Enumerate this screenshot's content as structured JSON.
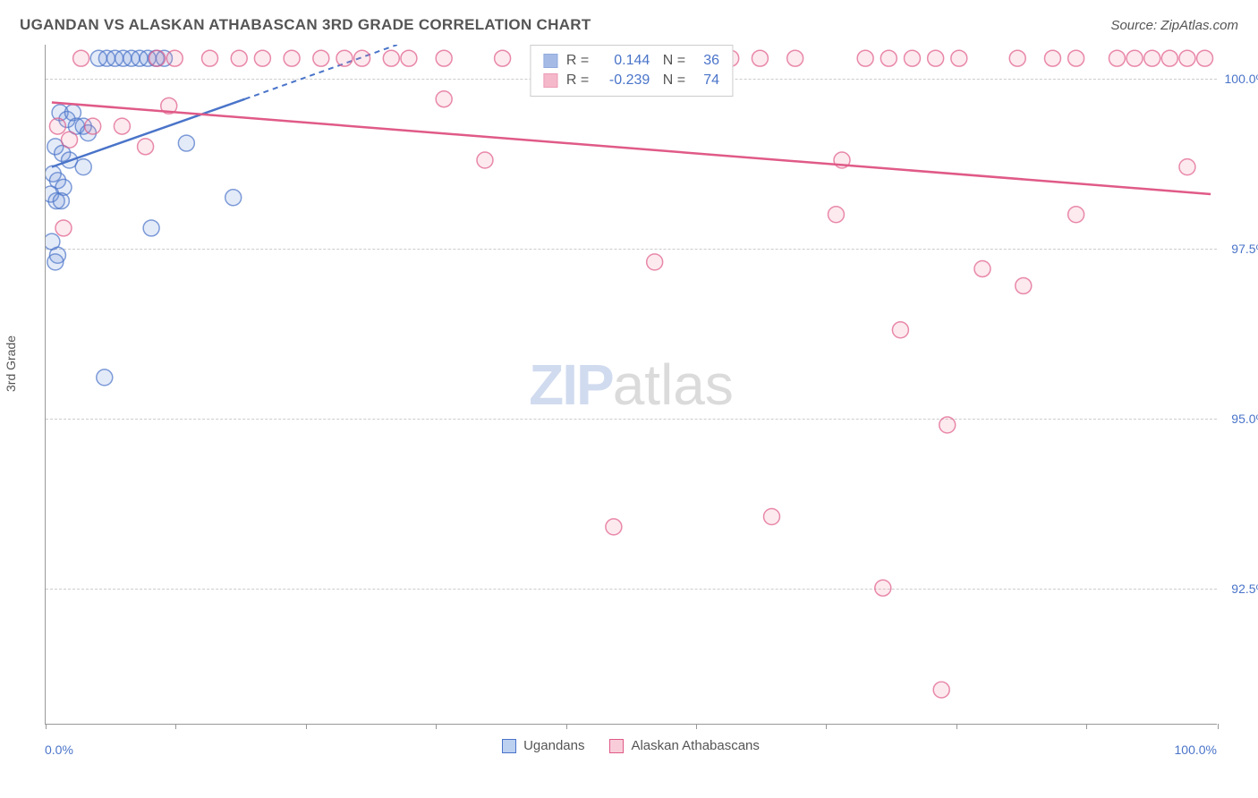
{
  "header": {
    "title": "UGANDAN VS ALASKAN ATHABASCAN 3RD GRADE CORRELATION CHART",
    "source": "Source: ZipAtlas.com"
  },
  "chart": {
    "type": "scatter",
    "y_axis_title": "3rd Grade",
    "xlim": [
      0,
      100
    ],
    "ylim": [
      90.5,
      100.5
    ],
    "x_ticks": [
      0,
      11.1,
      22.2,
      33.3,
      44.4,
      55.5,
      66.6,
      77.7,
      88.8,
      100
    ],
    "x_tick_labels_shown": {
      "left": "0.0%",
      "right": "100.0%"
    },
    "y_gridlines": [
      92.5,
      95.0,
      97.5,
      100.0
    ],
    "y_tick_labels": [
      "92.5%",
      "95.0%",
      "97.5%",
      "100.0%"
    ],
    "background_color": "#ffffff",
    "grid_color": "#cccccc",
    "axis_color": "#999999",
    "tick_label_color": "#4a74c9",
    "marker_radius": 9,
    "marker_fill_opacity": 0.18,
    "marker_stroke_width": 1.5,
    "line_width": 2.5,
    "series": [
      {
        "name": "Ugandans",
        "color_stroke": "#4a74c9",
        "color_fill": "#6a8fd6",
        "R": "0.144",
        "N": "36",
        "trend_solid": {
          "x1": 0.5,
          "y1": 98.7,
          "x2": 17,
          "y2": 99.7
        },
        "trend_dashed": {
          "x1": 17,
          "y1": 99.7,
          "x2": 30,
          "y2": 100.5
        },
        "points": [
          {
            "x": 4.5,
            "y": 100.3
          },
          {
            "x": 5.2,
            "y": 100.3
          },
          {
            "x": 5.9,
            "y": 100.3
          },
          {
            "x": 6.6,
            "y": 100.3
          },
          {
            "x": 7.3,
            "y": 100.3
          },
          {
            "x": 8.0,
            "y": 100.3
          },
          {
            "x": 8.7,
            "y": 100.3
          },
          {
            "x": 9.4,
            "y": 100.3
          },
          {
            "x": 10.1,
            "y": 100.3
          },
          {
            "x": 1.2,
            "y": 99.5
          },
          {
            "x": 1.8,
            "y": 99.4
          },
          {
            "x": 2.3,
            "y": 99.5
          },
          {
            "x": 2.6,
            "y": 99.3
          },
          {
            "x": 3.2,
            "y": 99.3
          },
          {
            "x": 3.6,
            "y": 99.2
          },
          {
            "x": 0.8,
            "y": 99.0
          },
          {
            "x": 1.4,
            "y": 98.9
          },
          {
            "x": 2.0,
            "y": 98.8
          },
          {
            "x": 0.6,
            "y": 98.6
          },
          {
            "x": 1.0,
            "y": 98.5
          },
          {
            "x": 1.5,
            "y": 98.4
          },
          {
            "x": 0.4,
            "y": 98.3
          },
          {
            "x": 0.9,
            "y": 98.2
          },
          {
            "x": 1.3,
            "y": 98.2
          },
          {
            "x": 3.2,
            "y": 98.7
          },
          {
            "x": 12.0,
            "y": 99.05
          },
          {
            "x": 16.0,
            "y": 98.25
          },
          {
            "x": 9.0,
            "y": 97.8
          },
          {
            "x": 0.5,
            "y": 97.6
          },
          {
            "x": 1.0,
            "y": 97.4
          },
          {
            "x": 0.8,
            "y": 97.3
          },
          {
            "x": 5.0,
            "y": 95.6
          }
        ]
      },
      {
        "name": "Alaskan Athabascans",
        "color_stroke": "#e05a87",
        "color_fill": "#f08aa8",
        "R": "-0.239",
        "N": "74",
        "trend_solid": {
          "x1": 0.5,
          "y1": 99.65,
          "x2": 99.5,
          "y2": 98.3
        },
        "points": [
          {
            "x": 3.0,
            "y": 100.3
          },
          {
            "x": 9.5,
            "y": 100.3
          },
          {
            "x": 11.0,
            "y": 100.3
          },
          {
            "x": 14.0,
            "y": 100.3
          },
          {
            "x": 16.5,
            "y": 100.3
          },
          {
            "x": 18.5,
            "y": 100.3
          },
          {
            "x": 21.0,
            "y": 100.3
          },
          {
            "x": 23.5,
            "y": 100.3
          },
          {
            "x": 25.5,
            "y": 100.3
          },
          {
            "x": 27.0,
            "y": 100.3
          },
          {
            "x": 29.5,
            "y": 100.3
          },
          {
            "x": 31.0,
            "y": 100.3
          },
          {
            "x": 34.0,
            "y": 100.3
          },
          {
            "x": 39.0,
            "y": 100.3
          },
          {
            "x": 44.0,
            "y": 100.3
          },
          {
            "x": 47.0,
            "y": 100.3
          },
          {
            "x": 50.0,
            "y": 100.3
          },
          {
            "x": 54.5,
            "y": 100.3
          },
          {
            "x": 56.0,
            "y": 100.3
          },
          {
            "x": 58.5,
            "y": 100.3
          },
          {
            "x": 61.0,
            "y": 100.3
          },
          {
            "x": 64.0,
            "y": 100.3
          },
          {
            "x": 70.0,
            "y": 100.3
          },
          {
            "x": 72.0,
            "y": 100.3
          },
          {
            "x": 74.0,
            "y": 100.3
          },
          {
            "x": 76.0,
            "y": 100.3
          },
          {
            "x": 78.0,
            "y": 100.3
          },
          {
            "x": 83.0,
            "y": 100.3
          },
          {
            "x": 86.0,
            "y": 100.3
          },
          {
            "x": 88.0,
            "y": 100.3
          },
          {
            "x": 91.5,
            "y": 100.3
          },
          {
            "x": 93.0,
            "y": 100.3
          },
          {
            "x": 94.5,
            "y": 100.3
          },
          {
            "x": 96.0,
            "y": 100.3
          },
          {
            "x": 97.5,
            "y": 100.3
          },
          {
            "x": 99.0,
            "y": 100.3
          },
          {
            "x": 1.0,
            "y": 99.3
          },
          {
            "x": 4.0,
            "y": 99.3
          },
          {
            "x": 6.5,
            "y": 99.3
          },
          {
            "x": 8.5,
            "y": 99.0
          },
          {
            "x": 10.5,
            "y": 99.6
          },
          {
            "x": 34.0,
            "y": 99.7
          },
          {
            "x": 68.0,
            "y": 98.8
          },
          {
            "x": 97.5,
            "y": 98.7
          },
          {
            "x": 67.5,
            "y": 98.0
          },
          {
            "x": 88.0,
            "y": 98.0
          },
          {
            "x": 1.5,
            "y": 97.8
          },
          {
            "x": 37.5,
            "y": 98.8
          },
          {
            "x": 2.0,
            "y": 99.1
          },
          {
            "x": 52.0,
            "y": 97.3
          },
          {
            "x": 80.0,
            "y": 97.2
          },
          {
            "x": 83.5,
            "y": 96.95
          },
          {
            "x": 73.0,
            "y": 96.3
          },
          {
            "x": 77.0,
            "y": 94.9
          },
          {
            "x": 48.5,
            "y": 93.4
          },
          {
            "x": 62.0,
            "y": 93.55
          },
          {
            "x": 71.5,
            "y": 92.5
          },
          {
            "x": 76.5,
            "y": 91.0
          }
        ]
      }
    ]
  },
  "legend_bottom": [
    {
      "label": "Ugandans",
      "stroke": "#4a74c9",
      "fill": "#bcd0f0"
    },
    {
      "label": "Alaskan Athabascans",
      "stroke": "#e05a87",
      "fill": "#f8cdd9"
    }
  ],
  "watermark": {
    "zip": "ZIP",
    "atlas": "atlas"
  }
}
